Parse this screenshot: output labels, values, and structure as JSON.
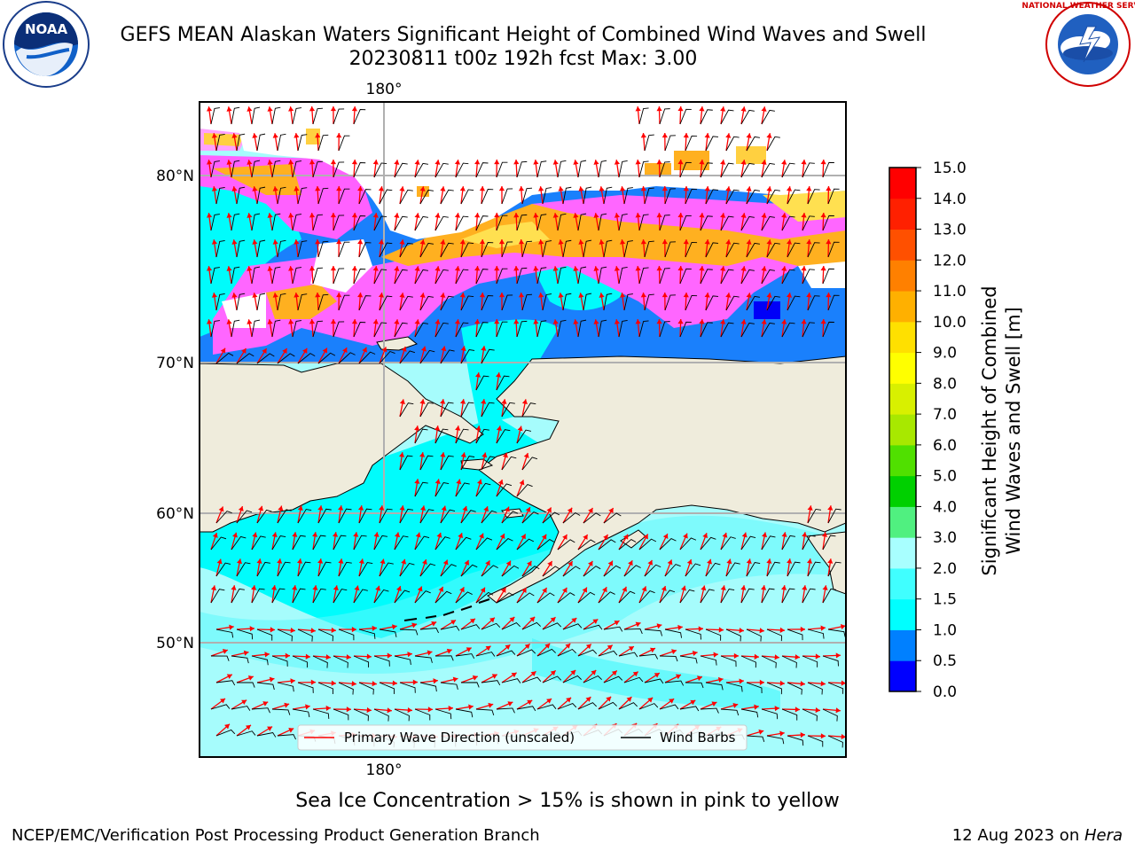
{
  "header": {
    "title_line1": "GEFS MEAN Alaskan Waters Significant Height of Combined Wind Waves and Swell",
    "title_line2": "20230811 t00z 192h fcst   Max: 3.00"
  },
  "logos": {
    "left": {
      "name": "noaa-logo",
      "text": "NOAA",
      "ring_text": "NATIONAL OCEANIC AND ATMOSPHERIC ADMINISTRATION · U.S. DEPARTMENT OF COMMERCE"
    },
    "right": {
      "name": "nws-logo",
      "ring_text": "NATIONAL WEATHER SERVICE"
    }
  },
  "map": {
    "lon_labels": [
      "180°",
      "180°"
    ],
    "lat_labels": [
      "80°N",
      "70°N",
      "60°N",
      "50°N"
    ],
    "colors": {
      "land": "#efecdc",
      "ocean_light": "#a6fcfc",
      "ocean_mid": "#00fcfc",
      "ocean_deep": "#0080fc",
      "ice_pink": "#ff66ff",
      "ice_orange": "#ffb020",
      "ice_yellow": "#ffe050",
      "arrow": "#ff0000",
      "barb": "#000000"
    }
  },
  "legend": {
    "items": [
      {
        "label": "Primary Wave Direction (unscaled)",
        "color": "#ff0000"
      },
      {
        "label": "Wind Barbs",
        "color": "#000000"
      }
    ]
  },
  "colorbar": {
    "label_line1": "Significant Height of Combined",
    "label_line2": "Wind Waves and Swell [m]",
    "ticks": [
      "0.0",
      "0.5",
      "1.0",
      "1.5",
      "2.0",
      "3.0",
      "4.0",
      "5.0",
      "6.0",
      "7.0",
      "8.0",
      "9.0",
      "10.0",
      "11.0",
      "12.0",
      "13.0",
      "14.0",
      "15.0"
    ],
    "colors": [
      "#0000ff",
      "#0080ff",
      "#00ffff",
      "#40ffff",
      "#a8ffff",
      "#50f080",
      "#00d000",
      "#50e000",
      "#a8e800",
      "#d8f000",
      "#ffff00",
      "#ffe000",
      "#ffb000",
      "#ff8000",
      "#ff5000",
      "#ff2000",
      "#ff0000"
    ]
  },
  "caption": "Sea Ice Concentration > 15% is shown in pink to yellow",
  "footer": {
    "left": "NCEP/EMC/Verification Post Processing Product Generation Branch",
    "right_date": "12 Aug 2023 on ",
    "right_host": "Hera"
  }
}
